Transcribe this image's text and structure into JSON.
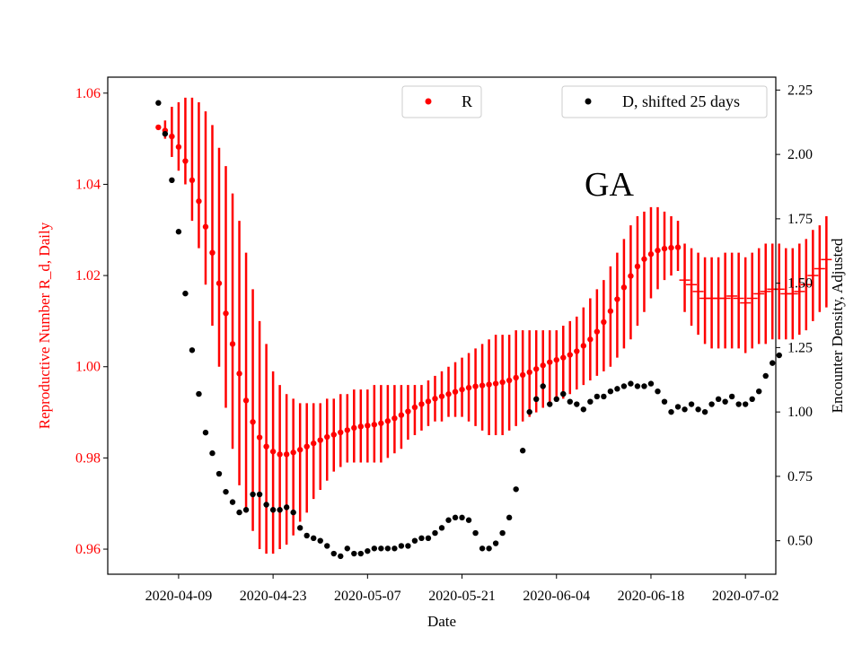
{
  "chart_data": {
    "type": "scatter",
    "annotation": "GA",
    "xlabel": "Date",
    "x_tick_labels": [
      "2020-04-09",
      "2020-04-23",
      "2020-05-07",
      "2020-05-21",
      "2020-06-04",
      "2020-06-18",
      "2020-07-02"
    ],
    "x_tick_days": [
      9,
      23,
      37,
      51,
      65,
      79,
      93
    ],
    "x_range_days": [
      -1.5,
      97.5
    ],
    "left_axis": {
      "label": "Reproductive Number R_d, Daily",
      "color": "#ff0000",
      "ylim": [
        0.9545,
        1.0635
      ],
      "ticks": [
        0.96,
        0.98,
        1.0,
        1.02,
        1.04,
        1.06
      ],
      "tick_labels": [
        "0.96",
        "0.98",
        "1.00",
        "1.02",
        "1.04",
        "1.06"
      ]
    },
    "right_axis": {
      "label": "Encounter Density, Adjusted",
      "color": "#000000",
      "ylim": [
        0.37,
        2.3
      ],
      "ticks": [
        0.5,
        0.75,
        1.0,
        1.25,
        1.5,
        1.75,
        2.0,
        2.25
      ],
      "tick_labels": [
        "0.50",
        "0.75",
        "1.00",
        "1.25",
        "1.50",
        "1.75",
        "2.00",
        "2.25"
      ]
    },
    "legend": [
      {
        "label": "R",
        "color": "#ff0000",
        "position": "top-center"
      },
      {
        "label": "D, shifted 25 days",
        "color": "#000000",
        "position": "top-right"
      }
    ],
    "series": [
      {
        "name": "R",
        "axis": "left",
        "color": "#ff0000",
        "x_start_day": 6,
        "values": [
          1.0525,
          1.0518,
          1.0505,
          1.0482,
          1.0451,
          1.0409,
          1.0363,
          1.0307,
          1.025,
          1.0183,
          1.0117,
          1.005,
          0.9985,
          0.9926,
          0.9879,
          0.9845,
          0.9825,
          0.9814,
          0.9808,
          0.9808,
          0.9812,
          0.9818,
          0.9825,
          0.9832,
          0.9839,
          0.9846,
          0.9851,
          0.9856,
          0.9861,
          0.9866,
          0.9869,
          0.9871,
          0.9873,
          0.9876,
          0.9881,
          0.9887,
          0.9894,
          0.9902,
          0.9911,
          0.9918,
          0.9924,
          0.993,
          0.9935,
          0.994,
          0.9945,
          0.995,
          0.9954,
          0.9957,
          0.9959,
          0.9961,
          0.9963,
          0.9966,
          0.997,
          0.9976,
          0.9982,
          0.9988,
          0.9995,
          1.0003,
          1.001,
          1.0015,
          1.002,
          1.0026,
          1.0034,
          1.0046,
          1.006,
          1.0077,
          1.0098,
          1.0122,
          1.0148,
          1.0174,
          1.0199,
          1.022,
          1.0236,
          1.0247,
          1.0255,
          1.0259,
          1.0261,
          1.0262
        ],
        "error_low": [
          1.052,
          1.05,
          1.046,
          1.043,
          1.04,
          1.032,
          1.026,
          1.018,
          1.009,
          1.0,
          0.991,
          0.982,
          0.974,
          0.968,
          0.964,
          0.96,
          0.959,
          0.959,
          0.96,
          0.961,
          0.963,
          0.966,
          0.968,
          0.971,
          0.973,
          0.975,
          0.977,
          0.978,
          0.979,
          0.979,
          0.979,
          0.979,
          0.979,
          0.979,
          0.98,
          0.981,
          0.982,
          0.984,
          0.985,
          0.986,
          0.987,
          0.988,
          0.988,
          0.989,
          0.989,
          0.989,
          0.988,
          0.987,
          0.986,
          0.985,
          0.985,
          0.985,
          0.986,
          0.987,
          0.988,
          0.989,
          0.99,
          0.991,
          0.992,
          0.993,
          0.993,
          0.994,
          0.995,
          0.996,
          0.997,
          0.998,
          0.999,
          1.0,
          1.002,
          1.004,
          1.006,
          1.009,
          1.012,
          1.015,
          1.017,
          1.019,
          1.02,
          1.021
        ],
        "error_high": [
          1.053,
          1.054,
          1.057,
          1.058,
          1.059,
          1.059,
          1.058,
          1.056,
          1.053,
          1.048,
          1.044,
          1.038,
          1.032,
          1.025,
          1.017,
          1.01,
          1.005,
          0.999,
          0.996,
          0.994,
          0.993,
          0.992,
          0.992,
          0.992,
          0.992,
          0.993,
          0.993,
          0.994,
          0.994,
          0.995,
          0.995,
          0.995,
          0.996,
          0.996,
          0.996,
          0.996,
          0.996,
          0.996,
          0.996,
          0.996,
          0.997,
          0.998,
          0.999,
          1.0,
          1.001,
          1.002,
          1.003,
          1.004,
          1.005,
          1.006,
          1.007,
          1.007,
          1.007,
          1.008,
          1.008,
          1.008,
          1.008,
          1.008,
          1.008,
          1.008,
          1.009,
          1.01,
          1.011,
          1.013,
          1.015,
          1.017,
          1.019,
          1.022,
          1.025,
          1.028,
          1.031,
          1.033,
          1.034,
          1.035,
          1.035,
          1.034,
          1.033,
          1.032
        ]
      },
      {
        "name": "R (extended, no marker)",
        "axis": "left",
        "color": "#ff0000",
        "marker": "tick",
        "x_start_day": 84,
        "values": [
          1.019,
          1.018,
          1.0165,
          1.015,
          1.015,
          1.015,
          1.015,
          1.0155,
          1.015,
          1.014,
          1.015,
          1.016,
          1.0165,
          1.017,
          1.017,
          1.016,
          1.016,
          1.0165,
          1.018,
          1.02,
          1.0215,
          1.0235
        ],
        "error_low": [
          1.012,
          1.009,
          1.007,
          1.005,
          1.004,
          1.004,
          1.004,
          1.004,
          1.004,
          1.003,
          1.004,
          1.005,
          1.005,
          1.006,
          1.006,
          1.006,
          1.006,
          1.007,
          1.008,
          1.01,
          1.012,
          1.013
        ],
        "error_high": [
          1.027,
          1.026,
          1.025,
          1.024,
          1.024,
          1.024,
          1.025,
          1.025,
          1.025,
          1.024,
          1.025,
          1.026,
          1.027,
          1.027,
          1.027,
          1.026,
          1.026,
          1.027,
          1.028,
          1.03,
          1.031,
          1.033
        ]
      },
      {
        "name": "D, shifted 25 days",
        "axis": "right",
        "color": "#000000",
        "x_start_day": 6,
        "values": [
          2.2,
          2.08,
          1.9,
          1.7,
          1.46,
          1.24,
          1.07,
          0.92,
          0.84,
          0.76,
          0.69,
          0.65,
          0.61,
          0.62,
          0.68,
          0.68,
          0.64,
          0.62,
          0.62,
          0.63,
          0.61,
          0.55,
          0.52,
          0.51,
          0.5,
          0.48,
          0.45,
          0.44,
          0.47,
          0.45,
          0.45,
          0.46,
          0.47,
          0.47,
          0.47,
          0.47,
          0.48,
          0.48,
          0.5,
          0.51,
          0.51,
          0.53,
          0.55,
          0.58,
          0.59,
          0.59,
          0.58,
          0.53,
          0.47,
          0.47,
          0.49,
          0.53,
          0.59,
          0.7,
          0.85,
          1.0,
          1.05,
          1.1,
          1.03,
          1.05,
          1.07,
          1.04,
          1.03,
          1.01,
          1.04,
          1.06,
          1.06,
          1.08,
          1.09,
          1.1,
          1.11,
          1.1,
          1.1,
          1.11,
          1.08,
          1.04,
          1.0,
          1.02,
          1.01,
          1.03,
          1.01,
          1.0,
          1.03,
          1.05,
          1.04,
          1.06,
          1.03,
          1.03,
          1.05,
          1.08,
          1.14,
          1.19,
          1.22
        ]
      }
    ]
  }
}
